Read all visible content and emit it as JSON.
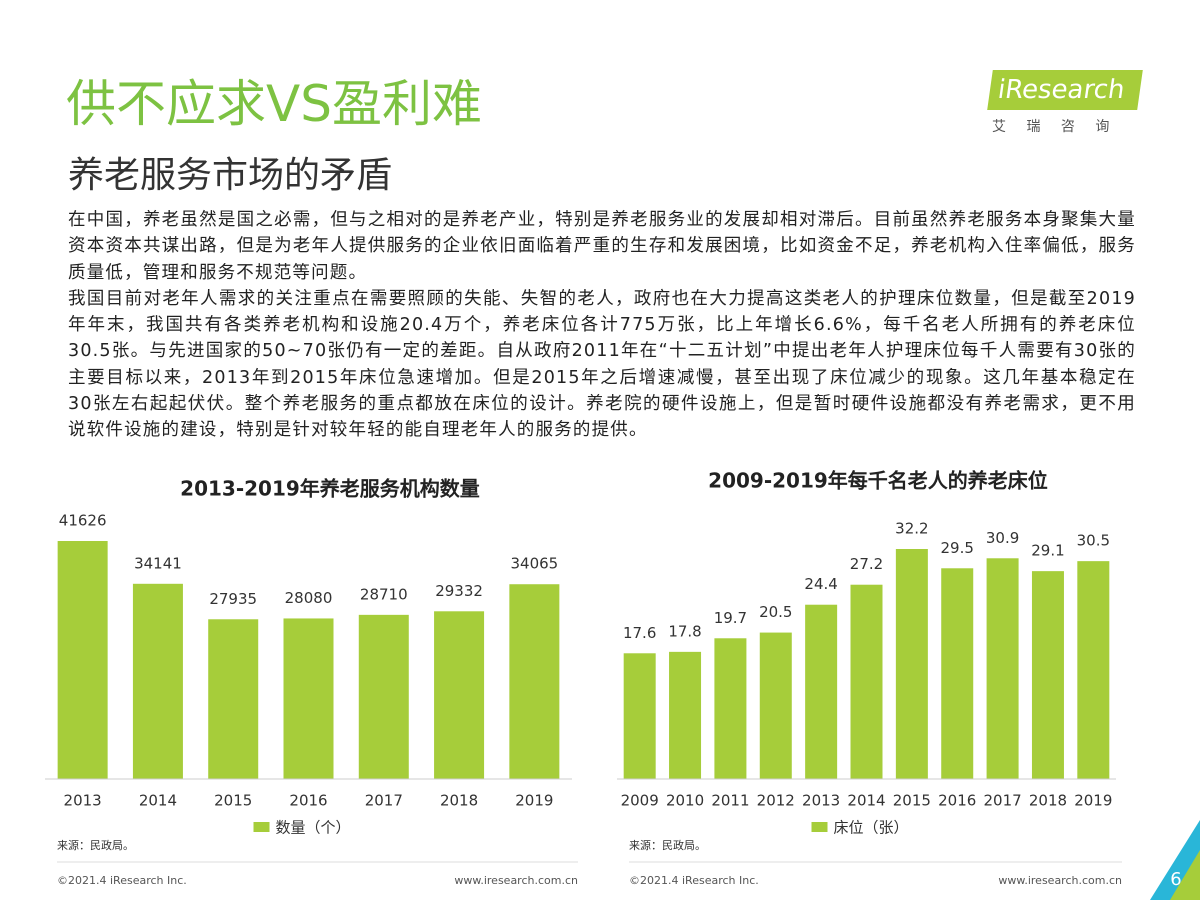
{
  "header": {
    "title": "供不应求VS盈利难",
    "subtitle": "养老服务市场的矛盾",
    "logo": "iResearch",
    "logo_cn": "艾 瑞 咨 询"
  },
  "body": [
    "在中国，养老虽然是国之必需，但与之相对的是养老产业，特别是养老服务业的发展却相对滞后。目前虽然养老服务本身聚集大量资本资本共谋出路，但是为老年人提供服务的企业依旧面临着严重的生存和发展困境，比如资金不足，养老机构入住率偏低，服务质量低，管理和服务不规范等问题。",
    "我国目前对老年人需求的关注重点在需要照顾的失能、失智的老人，政府也在大力提高这类老人的护理床位数量，但是截至2019年年末，我国共有各类养老机构和设施20.4万个，养老床位各计775万张，比上年增长6.6%，每千名老人所拥有的养老床位30.5张。与先进国家的50~70张仍有一定的差距。自从政府2011年在“十二五计划”中提出老年人护理床位每千人需要有30张的主要目标以来，2013年到2015年床位急速增加。但是2015年之后增速减慢，甚至出现了床位减少的现象。这几年基本稳定在30张左右起起伏伏。整个养老服务的重点都放在床位的设计。养老院的硬件设施上，但是暂时硬件设施都没有养老需求，更不用说软件设施的建设，特别是针对较年轻的能自理老年人的服务的提供。"
  ],
  "chart_data": [
    {
      "type": "bar",
      "title": "2013-2019年养老服务机构数量",
      "categories": [
        "2013",
        "2014",
        "2015",
        "2016",
        "2017",
        "2018",
        "2019"
      ],
      "series": [
        {
          "name": "数量（个）",
          "color": "#a6cd3a",
          "values": [
            41626,
            34141,
            27935,
            28080,
            28710,
            29332,
            34065
          ]
        }
      ],
      "source": "来源：民政局。"
    },
    {
      "type": "bar",
      "title": "2009-2019年每千名老人的养老床位",
      "categories": [
        "2009",
        "2010",
        "2011",
        "2012",
        "2013",
        "2014",
        "2015",
        "2016",
        "2017",
        "2018",
        "2019"
      ],
      "series": [
        {
          "name": "床位（张）",
          "color": "#a6cd3a",
          "values": [
            17.6,
            17.8,
            19.7,
            20.5,
            24.4,
            27.2,
            32.2,
            29.5,
            30.9,
            29.1,
            30.5
          ]
        }
      ],
      "source": "来源：民政局。"
    }
  ],
  "footer": {
    "copyright": "©2021.4 iResearch Inc.",
    "url": "www.iresearch.com.cn"
  },
  "page_number": 6
}
